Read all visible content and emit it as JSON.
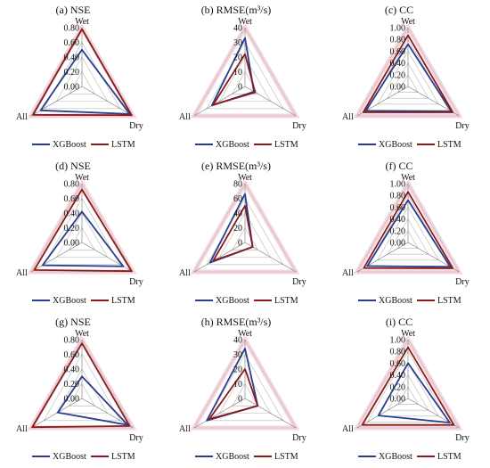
{
  "legend_labels": [
    "XGBoost",
    "LSTM"
  ],
  "axis_labels": [
    "Wet",
    "Dry",
    "All"
  ],
  "colors": {
    "xgboost": "#2b3d8f",
    "lstm": "#8b1a1a",
    "grid": "#b8b8b8",
    "halo": "#f2c4d0"
  },
  "chart_data": [
    {
      "type": "radar",
      "title": "(a) NSE",
      "axes": [
        "Wet",
        "Dry",
        "All"
      ],
      "ticks": [
        "0.00",
        "0.20",
        "0.40",
        "0.60",
        "0.80"
      ],
      "rmax": 0.8,
      "series": [
        {
          "name": "XGBoost",
          "values": [
            0.5,
            0.75,
            0.65
          ]
        },
        {
          "name": "LSTM",
          "values": [
            0.78,
            0.78,
            0.77
          ]
        }
      ],
      "legend_position": "bottom"
    },
    {
      "type": "radar",
      "title": "(b) RMSE(m³/s)",
      "axes": [
        "Wet",
        "Dry",
        "All"
      ],
      "ticks": [
        "0",
        "10",
        "20",
        "30",
        "40"
      ],
      "rmax": 40,
      "series": [
        {
          "name": "XGBoost",
          "values": [
            33,
            7,
            26
          ]
        },
        {
          "name": "LSTM",
          "values": [
            22,
            8,
            25
          ]
        }
      ],
      "legend_position": "bottom"
    },
    {
      "type": "radar",
      "title": "(c) CC",
      "axes": [
        "Wet",
        "Dry",
        "All"
      ],
      "ticks": [
        "0.00",
        "0.20",
        "0.40",
        "0.60",
        "0.80",
        "1.00"
      ],
      "rmax": 1.0,
      "series": [
        {
          "name": "XGBoost",
          "values": [
            0.72,
            0.85,
            0.83
          ]
        },
        {
          "name": "LSTM",
          "values": [
            0.87,
            0.88,
            0.88
          ]
        }
      ],
      "legend_position": "bottom"
    },
    {
      "type": "radar",
      "title": "(d) NSE",
      "axes": [
        "Wet",
        "Dry",
        "All"
      ],
      "ticks": [
        "0.00",
        "0.20",
        "0.40",
        "0.60",
        "0.80"
      ],
      "rmax": 0.8,
      "series": [
        {
          "name": "XGBoost",
          "values": [
            0.42,
            0.65,
            0.62
          ]
        },
        {
          "name": "LSTM",
          "values": [
            0.72,
            0.78,
            0.75
          ]
        }
      ],
      "legend_position": "bottom"
    },
    {
      "type": "radar",
      "title": "(e) RMSE(m³/s)",
      "axes": [
        "Wet",
        "Dry",
        "All"
      ],
      "ticks": [
        "0",
        "20",
        "40",
        "60",
        "80"
      ],
      "rmax": 80,
      "series": [
        {
          "name": "XGBoost",
          "values": [
            66,
            12,
            55
          ]
        },
        {
          "name": "LSTM",
          "values": [
            50,
            12,
            50
          ]
        }
      ],
      "legend_position": "bottom"
    },
    {
      "type": "radar",
      "title": "(f) CC",
      "axes": [
        "Wet",
        "Dry",
        "All"
      ],
      "ticks": [
        "0.00",
        "0.20",
        "0.40",
        "0.60",
        "0.80",
        "1.00"
      ],
      "rmax": 1.0,
      "series": [
        {
          "name": "XGBoost",
          "values": [
            0.72,
            0.83,
            0.8
          ]
        },
        {
          "name": "LSTM",
          "values": [
            0.86,
            0.88,
            0.87
          ]
        }
      ],
      "legend_position": "bottom"
    },
    {
      "type": "radar",
      "title": "(g) NSE",
      "axes": [
        "Wet",
        "Dry",
        "All"
      ],
      "ticks": [
        "0.00",
        "0.20",
        "0.40",
        "0.60",
        "0.80"
      ],
      "rmax": 0.8,
      "series": [
        {
          "name": "XGBoost",
          "values": [
            0.3,
            0.72,
            0.38
          ]
        },
        {
          "name": "LSTM",
          "values": [
            0.75,
            0.75,
            0.78
          ]
        }
      ],
      "legend_position": "bottom"
    },
    {
      "type": "radar",
      "title": "(h) RMSE(m³/s)",
      "axes": [
        "Wet",
        "Dry",
        "All"
      ],
      "ticks": [
        "0",
        "10",
        "20",
        "30",
        "40"
      ],
      "rmax": 40,
      "series": [
        {
          "name": "XGBoost",
          "values": [
            34,
            10,
            30
          ]
        },
        {
          "name": "LSTM",
          "values": [
            20,
            10,
            28
          ]
        }
      ],
      "legend_position": "bottom"
    },
    {
      "type": "radar",
      "title": "(i) CC",
      "axes": [
        "Wet",
        "Dry",
        "All"
      ],
      "ticks": [
        "0.00",
        "0.20",
        "0.40",
        "0.60",
        "0.80",
        "1.00"
      ],
      "rmax": 1.0,
      "series": [
        {
          "name": "XGBoost",
          "values": [
            0.6,
            0.82,
            0.58
          ]
        },
        {
          "name": "LSTM",
          "values": [
            0.87,
            0.9,
            0.9
          ]
        }
      ],
      "legend_position": "bottom"
    }
  ]
}
